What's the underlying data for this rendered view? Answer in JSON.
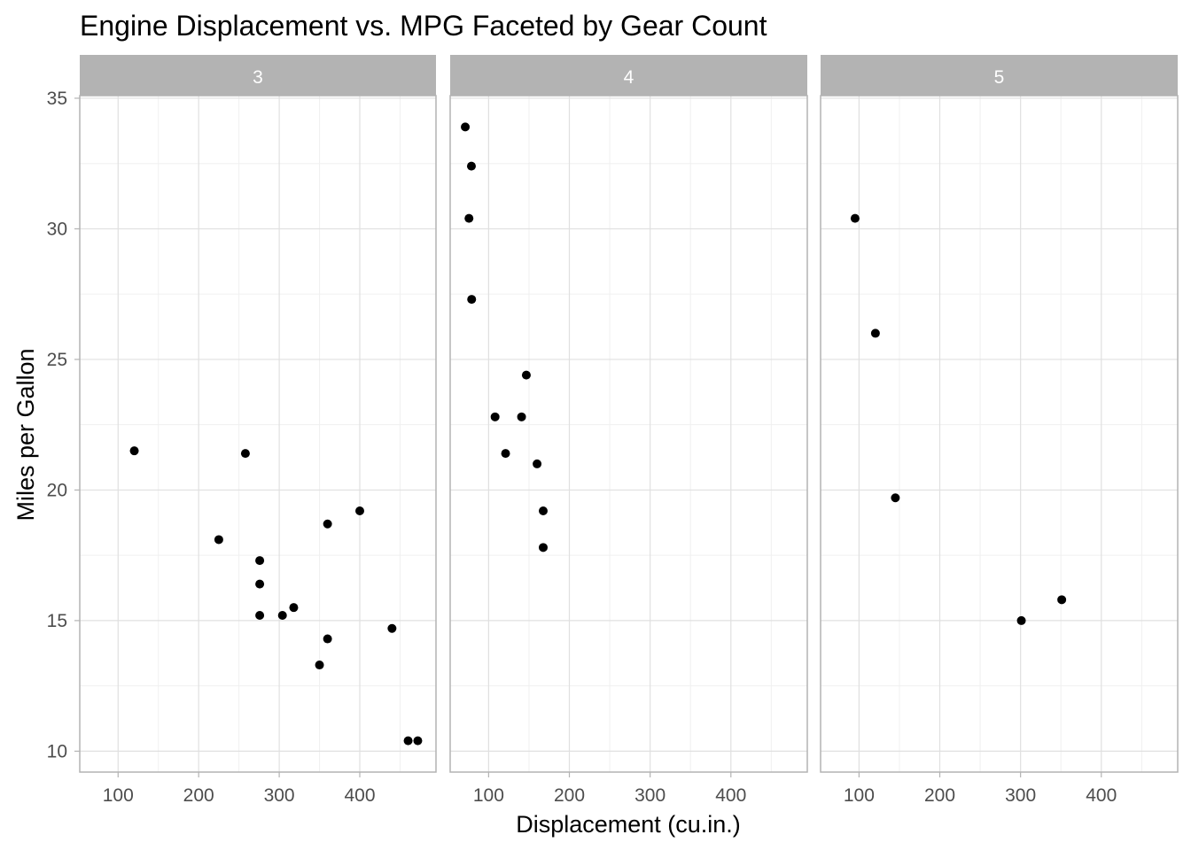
{
  "chart_data": {
    "type": "scatter",
    "title": "Engine Displacement vs. MPG Faceted by Gear Count",
    "xlabel": "Displacement (cu.in.)",
    "ylabel": "Miles per Gallon",
    "xlim": [
      52.4,
      494.6
    ],
    "ylim": [
      9.2,
      35.1
    ],
    "xticks": [
      100,
      200,
      300,
      400
    ],
    "yticks": [
      10,
      15,
      20,
      25,
      30,
      35
    ],
    "grid": true,
    "point_color": "#000000",
    "strip_color": "#b3b3b3",
    "facets": [
      {
        "label": "3",
        "points": [
          {
            "x": 120.1,
            "y": 21.5
          },
          {
            "x": 258,
            "y": 21.4
          },
          {
            "x": 225,
            "y": 18.1
          },
          {
            "x": 360,
            "y": 18.7
          },
          {
            "x": 400,
            "y": 19.2
          },
          {
            "x": 275.8,
            "y": 17.3
          },
          {
            "x": 275.8,
            "y": 16.4
          },
          {
            "x": 275.8,
            "y": 15.2
          },
          {
            "x": 304,
            "y": 15.2
          },
          {
            "x": 318,
            "y": 15.5
          },
          {
            "x": 360,
            "y": 14.3
          },
          {
            "x": 350,
            "y": 13.3
          },
          {
            "x": 440,
            "y": 14.7
          },
          {
            "x": 460,
            "y": 10.4
          },
          {
            "x": 472,
            "y": 10.4
          }
        ]
      },
      {
        "label": "4",
        "points": [
          {
            "x": 71.1,
            "y": 33.9
          },
          {
            "x": 78.7,
            "y": 32.4
          },
          {
            "x": 75.7,
            "y": 30.4
          },
          {
            "x": 79,
            "y": 27.3
          },
          {
            "x": 146.7,
            "y": 24.4
          },
          {
            "x": 108,
            "y": 22.8
          },
          {
            "x": 140.8,
            "y": 22.8
          },
          {
            "x": 121,
            "y": 21.4
          },
          {
            "x": 160,
            "y": 21.0
          },
          {
            "x": 167.6,
            "y": 19.2
          },
          {
            "x": 167.6,
            "y": 17.8
          }
        ]
      },
      {
        "label": "5",
        "points": [
          {
            "x": 95.1,
            "y": 30.4
          },
          {
            "x": 120.3,
            "y": 26.0
          },
          {
            "x": 145,
            "y": 19.7
          },
          {
            "x": 351,
            "y": 15.8
          },
          {
            "x": 301,
            "y": 15.0
          }
        ]
      }
    ]
  }
}
